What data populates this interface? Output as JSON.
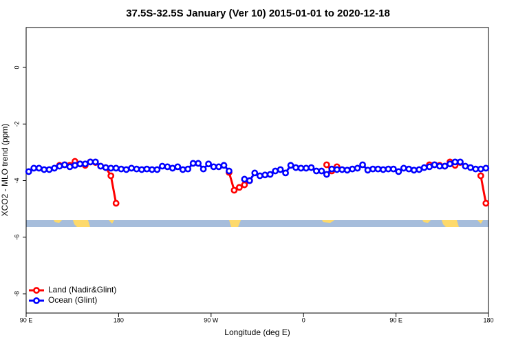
{
  "chart_data": {
    "type": "line",
    "title": "37.5S-32.5S January (Ver 10)   2015-01-01 to 2020-12-18",
    "xlabel": "Longitude (deg E)",
    "ylabel": "XCO2 - MLO trend (ppm)",
    "x": [
      92.5,
      97.5,
      102.5,
      107.5,
      112.5,
      117.5,
      122.5,
      127.5,
      132.5,
      137.5,
      142.5,
      147.5,
      152.5,
      157.5,
      162.5,
      167.5,
      172.5,
      177.5,
      182.5,
      187.5,
      192.5,
      197.5,
      202.5,
      207.5,
      212.5,
      217.5,
      222.5,
      227.5,
      232.5,
      237.5,
      242.5,
      247.5,
      252.5,
      257.5,
      262.5,
      267.5,
      272.5,
      277.5,
      282.5,
      287.5,
      292.5,
      297.5,
      302.5,
      307.5,
      312.5,
      317.5,
      322.5,
      327.5,
      332.5,
      337.5,
      342.5,
      347.5,
      352.5,
      357.5,
      362.5,
      367.5,
      372.5,
      377.5,
      382.5,
      387.5,
      392.5,
      397.5,
      402.5,
      407.5,
      412.5,
      417.5,
      422.5,
      427.5,
      432.5,
      437.5,
      442.5,
      447.5,
      452.5,
      457.5,
      462.5,
      467.5,
      472.5,
      477.5,
      482.5,
      487.5,
      492.5,
      497.5,
      502.5,
      507.5,
      512.5,
      517.5,
      522.5,
      527.5,
      532.5,
      537.5
    ],
    "series": [
      {
        "name": "Land (Nadir&Glint)",
        "color": "#ff0000",
        "values": [
          null,
          null,
          null,
          null,
          null,
          null,
          -3.46,
          -3.44,
          -3.46,
          -3.32,
          -3.41,
          -3.46,
          -3.34,
          -3.36,
          -3.49,
          -3.54,
          -3.83,
          -4.8,
          null,
          null,
          null,
          null,
          null,
          null,
          null,
          null,
          null,
          null,
          null,
          null,
          null,
          null,
          null,
          null,
          null,
          null,
          null,
          null,
          null,
          -3.71,
          -4.34,
          -4.24,
          -4.15,
          -4.0,
          null,
          null,
          null,
          null,
          null,
          null,
          null,
          null,
          null,
          null,
          null,
          null,
          null,
          null,
          -3.44,
          -3.66,
          -3.51,
          null,
          null,
          null,
          null,
          null,
          null,
          null,
          null,
          null,
          null,
          null,
          null,
          null,
          null,
          null,
          null,
          null,
          -3.44,
          -3.44,
          -3.46,
          -3.49,
          -3.34,
          -3.46,
          -3.36,
          null,
          null,
          null,
          -3.83,
          -4.8
        ]
      },
      {
        "name": "Ocean (Glint)",
        "color": "#0000ff",
        "values": [
          -3.68,
          -3.56,
          -3.56,
          -3.61,
          -3.61,
          -3.56,
          -3.49,
          -3.44,
          -3.51,
          -3.46,
          -3.41,
          -3.41,
          -3.34,
          -3.34,
          -3.49,
          -3.54,
          -3.56,
          -3.56,
          -3.59,
          -3.61,
          -3.56,
          -3.59,
          -3.61,
          -3.59,
          -3.61,
          -3.61,
          -3.49,
          -3.51,
          -3.56,
          -3.51,
          -3.61,
          -3.59,
          -3.39,
          -3.39,
          -3.59,
          -3.41,
          -3.51,
          -3.51,
          -3.46,
          -3.66,
          null,
          null,
          -3.95,
          -4.0,
          -3.73,
          -3.83,
          -3.8,
          -3.78,
          -3.66,
          -3.61,
          -3.73,
          -3.46,
          -3.54,
          -3.56,
          -3.56,
          -3.54,
          -3.66,
          -3.66,
          -3.78,
          -3.59,
          -3.61,
          -3.61,
          -3.63,
          -3.59,
          -3.56,
          -3.44,
          -3.63,
          -3.59,
          -3.59,
          -3.61,
          -3.59,
          -3.59,
          -3.68,
          -3.56,
          -3.59,
          -3.63,
          -3.61,
          -3.54,
          -3.51,
          -3.44,
          -3.49,
          -3.49,
          -3.41,
          -3.34,
          -3.34,
          -3.49,
          -3.54,
          -3.59,
          -3.59,
          -3.56
        ]
      }
    ],
    "xlim": [
      90,
      540
    ],
    "xticks": [
      {
        "value": 90,
        "label": "90 E"
      },
      180,
      {
        "value": 270,
        "label": "90 W"
      },
      {
        "value": 360,
        "label": "0"
      },
      {
        "value": 450,
        "label": "90 E"
      },
      {
        "value": 540,
        "label": "180"
      }
    ],
    "ylim": [
      -8.68,
      1.41
    ],
    "yticks": [
      0,
      -2,
      -4,
      -6,
      -8
    ],
    "legend": "bottom-left"
  }
}
